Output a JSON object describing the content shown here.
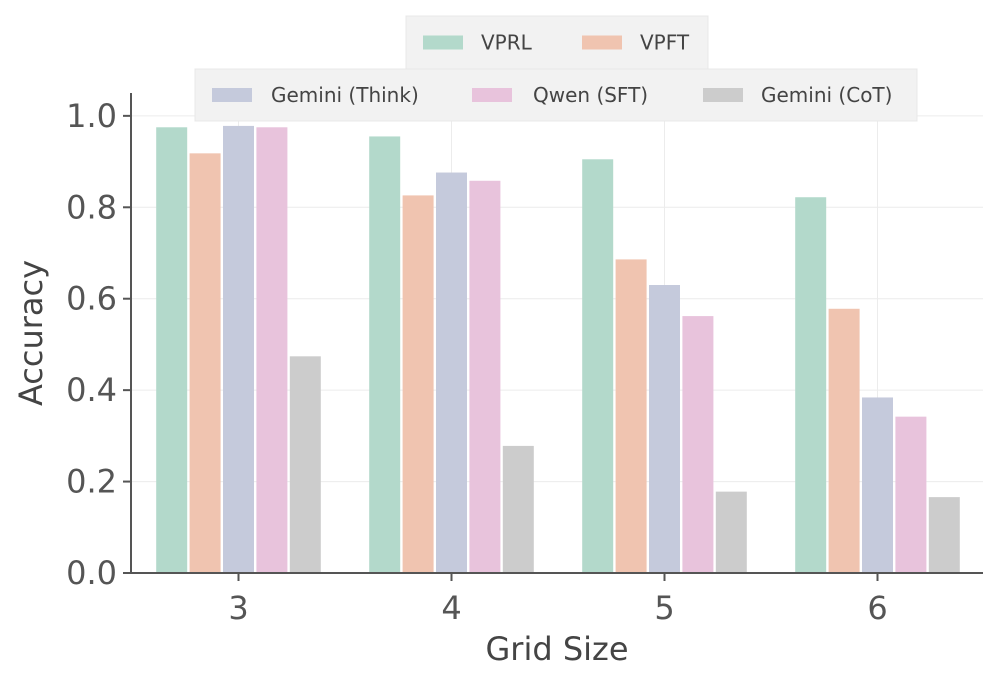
{
  "chart_data": {
    "type": "bar",
    "title": "",
    "xlabel": "Grid Size",
    "ylabel": "Accuracy",
    "categories": [
      "3",
      "4",
      "5",
      "6"
    ],
    "ylim": [
      0,
      1.05
    ],
    "yticks": [
      0.0,
      0.2,
      0.4,
      0.6,
      0.8,
      1.0
    ],
    "ytick_labels": [
      "0.0",
      "0.2",
      "0.4",
      "0.6",
      "0.8",
      "1.0"
    ],
    "grid": true,
    "legend_placement": "top-center",
    "series": [
      {
        "name": "VPRL",
        "color": "#b3d9cb",
        "values": [
          0.975,
          0.955,
          0.905,
          0.822
        ]
      },
      {
        "name": "VPFT",
        "color": "#f0c4b0",
        "values": [
          0.918,
          0.826,
          0.686,
          0.578
        ]
      },
      {
        "name": "Gemini (Think)",
        "color": "#c5cadc",
        "values": [
          0.978,
          0.876,
          0.63,
          0.384
        ]
      },
      {
        "name": "Qwen (SFT)",
        "color": "#e8c3dc",
        "values": [
          0.975,
          0.858,
          0.562,
          0.342
        ]
      },
      {
        "name": "Gemini (CoT)",
        "color": "#cccccc",
        "values": [
          0.474,
          0.278,
          0.178,
          0.166
        ]
      }
    ],
    "legend_rows": [
      [
        0,
        1
      ],
      [
        2,
        3,
        4
      ]
    ]
  }
}
